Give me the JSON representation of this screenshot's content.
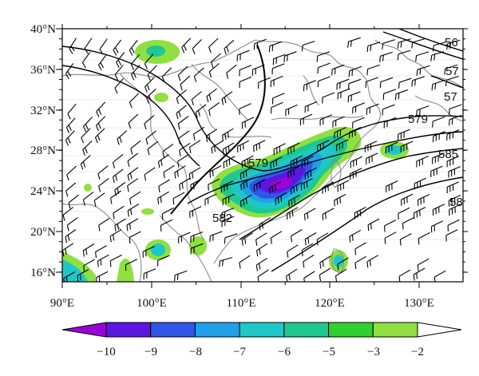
{
  "map": {
    "y_labels": [
      "40°N",
      "36°N",
      "32°N",
      "28°N",
      "24°N",
      "20°N",
      "16°N"
    ],
    "x_labels": [
      "90°E",
      "100°E",
      "110°E",
      "120°E",
      "130°E"
    ],
    "contour_labels": [
      "579",
      "579",
      "582",
      "585",
      "57",
      "57",
      "56",
      "58"
    ]
  },
  "colorbar": {
    "labels": [
      "−10",
      "−9",
      "−8",
      "−7",
      "−6",
      "−5",
      "−3",
      "−2"
    ],
    "colors": [
      "#9b00d6",
      "#5b16e0",
      "#2f56e8",
      "#1fa0e8",
      "#1ec8c8",
      "#1ec890",
      "#30d030",
      "#8fe040"
    ]
  },
  "colors": {
    "frame": "#000000",
    "coast": "#8a8a8a",
    "wind": "#000000"
  }
}
